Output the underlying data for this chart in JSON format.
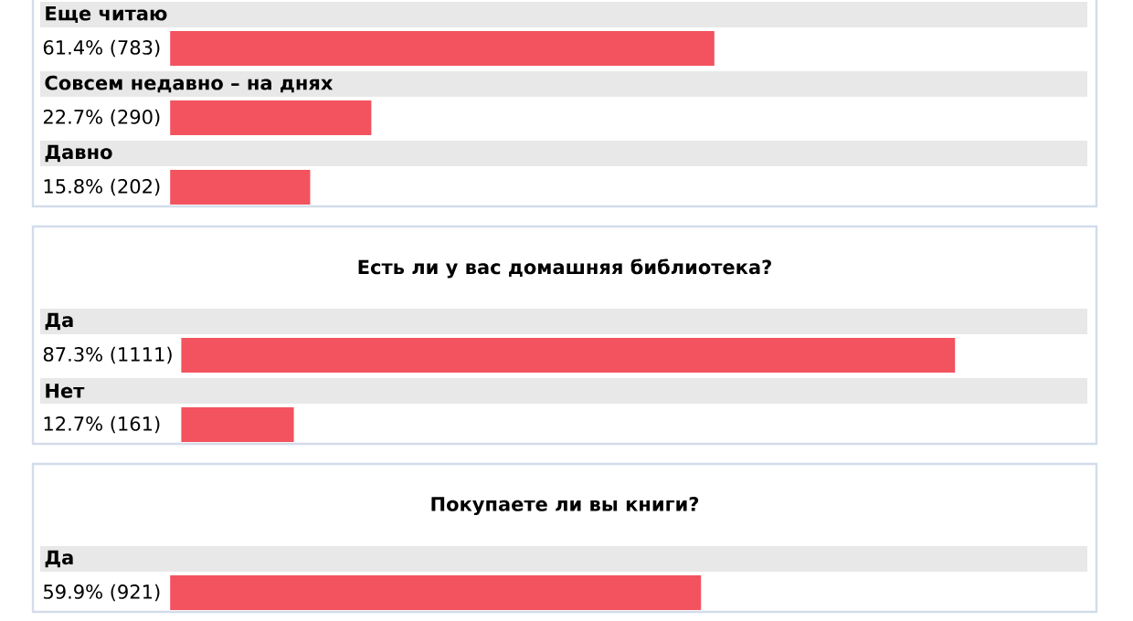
{
  "chart_data": [
    {
      "type": "bar",
      "orientation": "horizontal",
      "categories": [
        "Еще читаю",
        "Совсем недавно – на днях",
        "Давно"
      ],
      "values": [
        61.4,
        22.7,
        15.8
      ],
      "value_labels": [
        "61.4% (783)",
        "22.7% (290)",
        "15.8% (202)"
      ],
      "color": "#f2535e"
    },
    {
      "type": "bar",
      "orientation": "horizontal",
      "title": "Есть ли у вас домашняя библиотека?",
      "categories": [
        "Да",
        "Нет"
      ],
      "values": [
        87.3,
        12.7
      ],
      "value_labels": [
        "87.3% (1111)",
        "12.7% (161)"
      ],
      "color": "#f2535e"
    },
    {
      "type": "bar",
      "orientation": "horizontal",
      "title": "Покупаете ли вы книги?",
      "categories": [
        "Да"
      ],
      "values": [
        59.9
      ],
      "value_labels": [
        "59.9% (921)"
      ],
      "color": "#f2535e"
    }
  ]
}
